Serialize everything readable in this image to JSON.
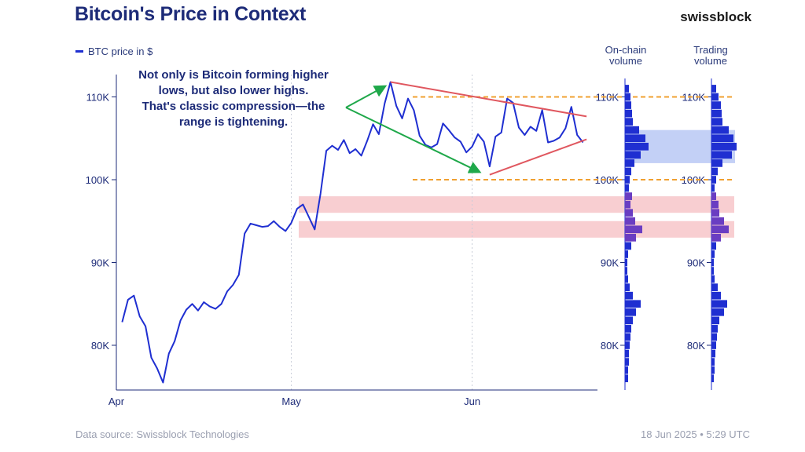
{
  "header": {
    "title": "Bitcoin's Price in Context",
    "brand": "swissblock"
  },
  "legend": {
    "label": "BTC price in $"
  },
  "annotation": {
    "lines": [
      "Not only is Bitcoin forming higher",
      "lows, but also lower highs.",
      "That's classic compression—the",
      "range is tightening."
    ]
  },
  "volume_panels": {
    "onchain_title": [
      "On-chain",
      "volume"
    ],
    "trading_title": [
      "Trading",
      "volume"
    ]
  },
  "footer": {
    "source": "Data source: Swissblock Technologies",
    "timestamp": "18 Jun 2025 • 5:29 UTC"
  },
  "colors": {
    "price": "#1f2fd1",
    "support_band": "#f7c6c9",
    "triangle": "#e0575f",
    "level_line": "#f0a030",
    "arrow": "#1fa84a",
    "volume_highlight": "#b9c8f5"
  },
  "chart_data": {
    "type": "line",
    "ylabel": "",
    "xlabel": "",
    "ylim": [
      75000,
      112000
    ],
    "x_ticks": [
      {
        "label": "Apr",
        "day": 0
      },
      {
        "label": "May",
        "day": 30
      },
      {
        "label": "Jun",
        "day": 61
      }
    ],
    "y_ticks": [
      {
        "label": "80K",
        "value": 80000
      },
      {
        "label": "90K",
        "value": 90000
      },
      {
        "label": "100K",
        "value": 100000
      },
      {
        "label": "110K",
        "value": 110000
      }
    ],
    "series": [
      {
        "name": "BTC price in $",
        "x": [
          1,
          2,
          3,
          4,
          5,
          6,
          7,
          8,
          9,
          10,
          11,
          12,
          13,
          14,
          15,
          16,
          17,
          18,
          19,
          20,
          21,
          22,
          23,
          24,
          25,
          26,
          27,
          28,
          29,
          30,
          31,
          32,
          33,
          34,
          35,
          36,
          37,
          38,
          39,
          40,
          41,
          42,
          43,
          44,
          45,
          46,
          47,
          48,
          49,
          50,
          51,
          52,
          53,
          54,
          55,
          56,
          57,
          58,
          59,
          60,
          61,
          62,
          63,
          64,
          65,
          66,
          67,
          68,
          69,
          70,
          71,
          72,
          73,
          74,
          75,
          76,
          77,
          78,
          79,
          80
        ],
        "values": [
          82800,
          85500,
          86000,
          83500,
          82300,
          78500,
          77200,
          75500,
          79000,
          80500,
          83000,
          84300,
          85000,
          84200,
          85200,
          84700,
          84400,
          85000,
          86500,
          87300,
          88500,
          93500,
          94700,
          94500,
          94300,
          94400,
          95000,
          94300,
          93800,
          94800,
          96500,
          97000,
          95500,
          94000,
          98300,
          103500,
          104100,
          103600,
          104800,
          103200,
          103700,
          102900,
          104700,
          106700,
          105500,
          109200,
          111800,
          108900,
          107400,
          109800,
          108400,
          105300,
          104200,
          103900,
          104300,
          106800,
          106000,
          105100,
          104600,
          103300,
          104000,
          105500,
          104600,
          101600,
          105200,
          105700,
          109800,
          109300,
          106300,
          105400,
          106400,
          105900,
          108400,
          104500,
          104700,
          105100,
          106200,
          108800,
          105400,
          104500
        ]
      }
    ],
    "levels": [
      110000,
      100000
    ],
    "bands": [
      [
        96000,
        98000
      ],
      [
        93000,
        95000
      ]
    ],
    "triangle": {
      "upper": [
        {
          "day": 47,
          "value": 111800
        },
        {
          "day": 79,
          "value": 108400
        }
      ],
      "lower": [
        {
          "day": 64,
          "value": 100600
        },
        {
          "day": 79,
          "value": 104500
        }
      ]
    },
    "onchain_volume": [
      {
        "value": 111000,
        "w": 5
      },
      {
        "value": 110000,
        "w": 7
      },
      {
        "value": 109000,
        "w": 8
      },
      {
        "value": 108000,
        "w": 9
      },
      {
        "value": 107000,
        "w": 10
      },
      {
        "value": 106000,
        "w": 18
      },
      {
        "value": 105000,
        "w": 26
      },
      {
        "value": 104000,
        "w": 30
      },
      {
        "value": 103000,
        "w": 20
      },
      {
        "value": 102000,
        "w": 12
      },
      {
        "value": 101000,
        "w": 8
      },
      {
        "value": 100000,
        "w": 6
      },
      {
        "value": 99000,
        "w": 5
      },
      {
        "value": 98000,
        "w": 9
      },
      {
        "value": 97000,
        "w": 7
      },
      {
        "value": 96000,
        "w": 10
      },
      {
        "value": 95000,
        "w": 13
      },
      {
        "value": 94000,
        "w": 22
      },
      {
        "value": 93000,
        "w": 14
      },
      {
        "value": 92000,
        "w": 8
      },
      {
        "value": 91000,
        "w": 4
      },
      {
        "value": 90000,
        "w": 3
      },
      {
        "value": 89000,
        "w": 3
      },
      {
        "value": 88000,
        "w": 4
      },
      {
        "value": 87000,
        "w": 6
      },
      {
        "value": 86000,
        "w": 10
      },
      {
        "value": 85000,
        "w": 20
      },
      {
        "value": 84000,
        "w": 14
      },
      {
        "value": 83000,
        "w": 10
      },
      {
        "value": 82000,
        "w": 8
      },
      {
        "value": 81000,
        "w": 7
      },
      {
        "value": 80000,
        "w": 6
      },
      {
        "value": 79000,
        "w": 5
      },
      {
        "value": 78000,
        "w": 5
      },
      {
        "value": 77000,
        "w": 4
      },
      {
        "value": 76000,
        "w": 4
      }
    ],
    "trading_volume": [
      {
        "value": 111000,
        "w": 6
      },
      {
        "value": 110000,
        "w": 9
      },
      {
        "value": 109000,
        "w": 12
      },
      {
        "value": 108000,
        "w": 13
      },
      {
        "value": 107000,
        "w": 14
      },
      {
        "value": 106000,
        "w": 22
      },
      {
        "value": 105000,
        "w": 28
      },
      {
        "value": 104000,
        "w": 32
      },
      {
        "value": 103000,
        "w": 26
      },
      {
        "value": 102000,
        "w": 14
      },
      {
        "value": 101000,
        "w": 8
      },
      {
        "value": 100000,
        "w": 6
      },
      {
        "value": 99000,
        "w": 4
      },
      {
        "value": 98000,
        "w": 6
      },
      {
        "value": 97000,
        "w": 9
      },
      {
        "value": 96000,
        "w": 10
      },
      {
        "value": 95000,
        "w": 16
      },
      {
        "value": 94000,
        "w": 22
      },
      {
        "value": 93000,
        "w": 12
      },
      {
        "value": 92000,
        "w": 6
      },
      {
        "value": 91000,
        "w": 4
      },
      {
        "value": 90000,
        "w": 3
      },
      {
        "value": 89000,
        "w": 3
      },
      {
        "value": 88000,
        "w": 4
      },
      {
        "value": 87000,
        "w": 8
      },
      {
        "value": 86000,
        "w": 12
      },
      {
        "value": 85000,
        "w": 20
      },
      {
        "value": 84000,
        "w": 16
      },
      {
        "value": 83000,
        "w": 10
      },
      {
        "value": 82000,
        "w": 8
      },
      {
        "value": 81000,
        "w": 7
      },
      {
        "value": 80000,
        "w": 6
      },
      {
        "value": 79000,
        "w": 5
      },
      {
        "value": 78000,
        "w": 4
      },
      {
        "value": 77000,
        "w": 4
      },
      {
        "value": 76000,
        "w": 3
      }
    ]
  }
}
